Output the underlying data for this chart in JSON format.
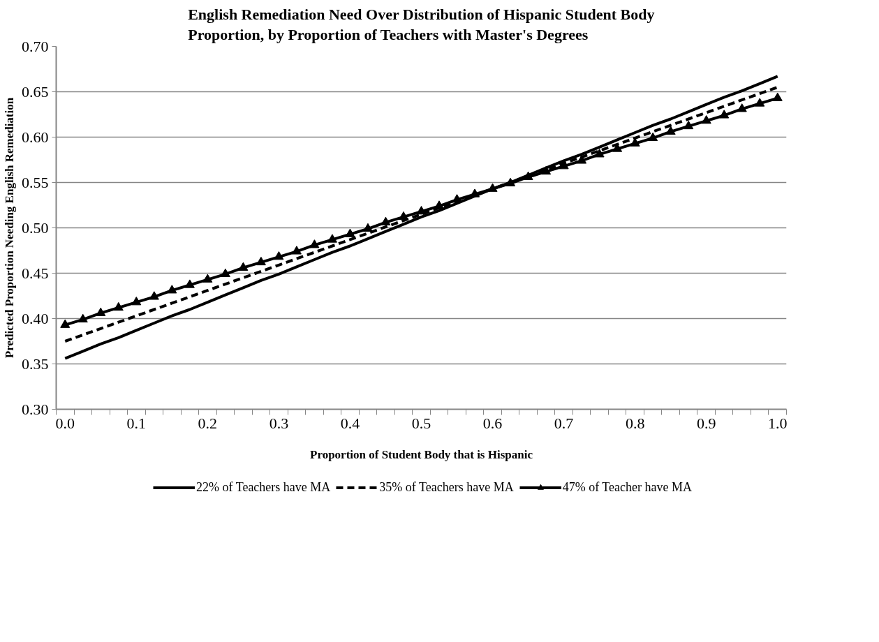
{
  "chart_data": {
    "type": "line",
    "title": "English Remediation Need Over Distribution of Hispanic Student Body Proportion, by Proportion of Teachers with Master's Degrees",
    "xlabel": "Proportion of Student Body that is Hispanic",
    "ylabel": "Predicted Proportion Needing English Remediation",
    "categories": [
      "0.0",
      null,
      null,
      null,
      "0.1",
      null,
      null,
      null,
      "0.2",
      null,
      null,
      null,
      "0.3",
      null,
      null,
      null,
      "0.4",
      null,
      null,
      null,
      "0.5",
      null,
      null,
      null,
      "0.6",
      null,
      null,
      null,
      "0.7",
      null,
      null,
      null,
      "0.8",
      null,
      null,
      null,
      "0.9",
      null,
      null,
      null,
      "1.0"
    ],
    "ylim": [
      0.3,
      0.7
    ],
    "yticks": [
      {
        "value": 0.3,
        "label": "0.30"
      },
      {
        "value": 0.35,
        "label": "0.35"
      },
      {
        "value": 0.4,
        "label": "0.40"
      },
      {
        "value": 0.45,
        "label": "0.45"
      },
      {
        "value": 0.5,
        "label": "0.50"
      },
      {
        "value": 0.55,
        "label": "0.55"
      },
      {
        "value": 0.6,
        "label": "0.60"
      },
      {
        "value": 0.65,
        "label": "0.65"
      },
      {
        "value": 0.7,
        "label": "0.70"
      }
    ],
    "grid": "y",
    "legend": "bottom",
    "series": [
      {
        "name": "22% of Teachers have MA",
        "color": "#000000",
        "line_style": "solid",
        "marker": "none",
        "values": [
          0.356,
          0.364,
          0.372,
          0.379,
          0.387,
          0.395,
          0.403,
          0.41,
          0.418,
          0.426,
          0.434,
          0.442,
          0.449,
          0.457,
          0.465,
          0.473,
          0.48,
          0.488,
          0.496,
          0.504,
          0.512,
          0.519,
          0.527,
          0.535,
          0.543,
          0.55,
          0.558,
          0.566,
          0.574,
          0.581,
          0.589,
          0.597,
          0.605,
          0.613,
          0.62,
          0.628,
          0.636,
          0.644,
          0.651,
          0.659,
          0.667
        ]
      },
      {
        "name": "35% of Teachers have MA",
        "color": "#000000",
        "line_style": "dashed",
        "marker": "none",
        "values": [
          0.375,
          0.382,
          0.389,
          0.396,
          0.403,
          0.41,
          0.417,
          0.424,
          0.431,
          0.438,
          0.445,
          0.452,
          0.459,
          0.466,
          0.473,
          0.48,
          0.487,
          0.494,
          0.501,
          0.508,
          0.515,
          0.522,
          0.529,
          0.536,
          0.543,
          0.55,
          0.557,
          0.564,
          0.571,
          0.578,
          0.585,
          0.592,
          0.599,
          0.606,
          0.613,
          0.62,
          0.627,
          0.634,
          0.641,
          0.648,
          0.655
        ]
      },
      {
        "name": "47% of Teacher have MA",
        "color": "#000000",
        "line_style": "solid",
        "marker": "triangle",
        "values": [
          0.393,
          0.399,
          0.406,
          0.412,
          0.418,
          0.424,
          0.431,
          0.437,
          0.443,
          0.449,
          0.456,
          0.462,
          0.468,
          0.474,
          0.481,
          0.487,
          0.493,
          0.499,
          0.506,
          0.512,
          0.518,
          0.524,
          0.531,
          0.537,
          0.543,
          0.549,
          0.556,
          0.562,
          0.568,
          0.574,
          0.581,
          0.587,
          0.593,
          0.599,
          0.606,
          0.612,
          0.618,
          0.624,
          0.631,
          0.637,
          0.643
        ]
      }
    ]
  }
}
